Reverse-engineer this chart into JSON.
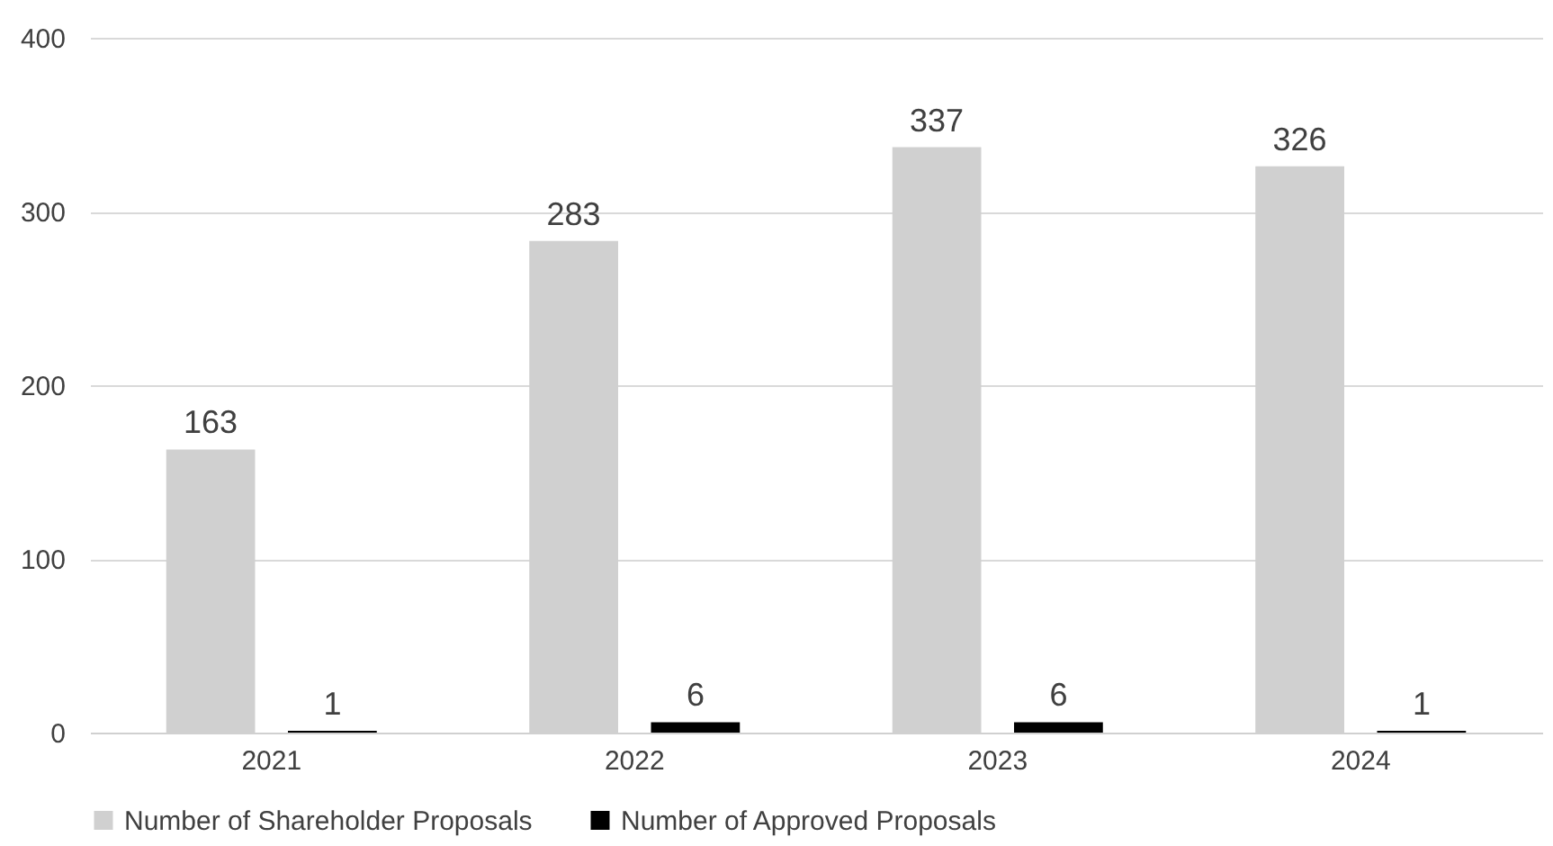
{
  "chart_data": {
    "type": "bar",
    "categories": [
      "2021",
      "2022",
      "2023",
      "2024"
    ],
    "series": [
      {
        "name": "Number of Shareholder Proposals",
        "color": "#d0d0d0",
        "values": [
          163,
          283,
          337,
          326
        ]
      },
      {
        "name": "Number of Approved Proposals",
        "color": "#000000",
        "values": [
          1,
          6,
          6,
          1
        ]
      }
    ],
    "ylim": [
      0,
      400
    ],
    "yticks": [
      0,
      100,
      200,
      300,
      400
    ],
    "grid": "y",
    "legend": "bottom",
    "data_labels": true
  }
}
